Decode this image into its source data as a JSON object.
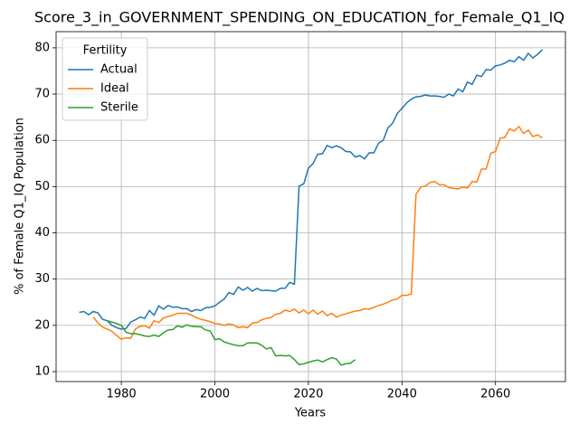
{
  "chart_data": {
    "type": "line",
    "title": "Score_3_in_GOVERNMENT_SPENDING_ON_EDUCATION_for_Female_Q1_IQ",
    "xlabel": "Years",
    "ylabel": "% of Female Q1_IQ Population",
    "legend_title": "Fertility",
    "legend": "upper left",
    "grid": true,
    "xlim": [
      1966.05,
      2074.95
    ],
    "ylim": [
      7.85,
      83.5
    ],
    "xticks": [
      1980,
      2000,
      2020,
      2040,
      2060
    ],
    "yticks": [
      10,
      20,
      30,
      40,
      50,
      60,
      70,
      80
    ],
    "x": [
      1971,
      1972,
      1973,
      1974,
      1975,
      1976,
      1977,
      1978,
      1979,
      1980,
      1981,
      1982,
      1983,
      1984,
      1985,
      1986,
      1987,
      1988,
      1989,
      1990,
      1991,
      1992,
      1993,
      1994,
      1995,
      1996,
      1997,
      1998,
      1999,
      2000,
      2001,
      2002,
      2003,
      2004,
      2005,
      2006,
      2007,
      2008,
      2009,
      2010,
      2011,
      2012,
      2013,
      2014,
      2015,
      2016,
      2017,
      2018,
      2019,
      2020,
      2021,
      2022,
      2023,
      2024,
      2025,
      2026,
      2027,
      2028,
      2029,
      2030,
      2031,
      2032,
      2033,
      2034,
      2035,
      2036,
      2037,
      2038,
      2039,
      2040,
      2041,
      2042,
      2043,
      2044,
      2045,
      2046,
      2047,
      2048,
      2049,
      2050,
      2051,
      2052,
      2053,
      2054,
      2055,
      2056,
      2057,
      2058,
      2059,
      2060,
      2061,
      2062,
      2063,
      2064,
      2065,
      2066,
      2067,
      2068,
      2069,
      2070
    ],
    "series": [
      {
        "name": "Actual",
        "color": "#1f77b4",
        "values": [
          22.8,
          23.0,
          22.3,
          23.0,
          22.7,
          21.3,
          21.0,
          20.0,
          19.5,
          19.2,
          19.3,
          20.7,
          21.2,
          21.8,
          21.5,
          23.2,
          22.2,
          24.2,
          23.5,
          24.3,
          23.9,
          24.0,
          23.6,
          23.6,
          23.0,
          23.4,
          23.2,
          23.8,
          23.9,
          24.2,
          25.0,
          25.7,
          27.1,
          26.7,
          28.3,
          27.6,
          28.2,
          27.4,
          28.0,
          27.5,
          27.6,
          27.5,
          27.4,
          28.0,
          28.0,
          29.3,
          28.9,
          50.1,
          50.6,
          54.0,
          55.0,
          57.0,
          57.1,
          58.9,
          58.4,
          58.8,
          58.4,
          57.6,
          57.5,
          56.4,
          56.7,
          56.0,
          57.3,
          57.3,
          59.4,
          60.0,
          62.7,
          63.7,
          65.8,
          66.9,
          68.1,
          68.9,
          69.4,
          69.5,
          69.8,
          69.6,
          69.6,
          69.5,
          69.3,
          70.0,
          69.6,
          71.1,
          70.5,
          72.6,
          72.1,
          74.1,
          73.8,
          75.3,
          75.2,
          76.1,
          76.3,
          76.7,
          77.3,
          77.0,
          78.1,
          77.3,
          78.8,
          77.8,
          78.6,
          79.6
        ]
      },
      {
        "name": "Ideal",
        "color": "#ff7f0e",
        "values": [
          null,
          null,
          null,
          21.8,
          20.5,
          19.6,
          19.2,
          18.7,
          17.8,
          17.0,
          17.3,
          17.2,
          19.2,
          19.8,
          19.9,
          19.4,
          21.0,
          20.6,
          21.6,
          21.9,
          22.2,
          22.6,
          22.6,
          22.6,
          22.2,
          21.7,
          21.3,
          21.1,
          20.8,
          20.4,
          20.3,
          20.0,
          20.3,
          20.1,
          19.5,
          19.7,
          19.5,
          20.5,
          20.6,
          21.2,
          21.5,
          21.7,
          22.4,
          22.6,
          23.3,
          23.0,
          23.5,
          22.7,
          23.3,
          22.5,
          23.3,
          22.4,
          23.1,
          22.1,
          22.6,
          21.8,
          22.2,
          22.5,
          22.8,
          23.1,
          23.2,
          23.6,
          23.5,
          23.9,
          24.3,
          24.6,
          25.0,
          25.5,
          25.7,
          26.5,
          26.5,
          26.8,
          48.3,
          49.9,
          50.1,
          50.9,
          51.1,
          50.4,
          50.4,
          49.8,
          49.6,
          49.5,
          49.9,
          49.7,
          51.1,
          51.0,
          53.8,
          53.8,
          57.2,
          57.6,
          60.5,
          60.6,
          62.5,
          62.0,
          63.0,
          61.5,
          62.2,
          60.8,
          61.2,
          60.5
        ]
      },
      {
        "name": "Sterile",
        "color": "#2ca02c",
        "values": [
          null,
          null,
          null,
          null,
          null,
          null,
          21.0,
          20.7,
          20.4,
          20.0,
          18.5,
          18.2,
          18.2,
          18.0,
          17.7,
          17.6,
          17.9,
          17.6,
          18.4,
          19.0,
          19.1,
          19.9,
          19.6,
          20.1,
          19.8,
          19.7,
          19.7,
          19.0,
          18.8,
          16.9,
          17.1,
          16.4,
          16.1,
          15.8,
          15.6,
          15.6,
          16.2,
          16.2,
          16.2,
          15.7,
          14.9,
          15.2,
          13.4,
          13.5,
          13.4,
          13.5,
          12.6,
          11.5,
          11.7,
          12.0,
          12.3,
          12.5,
          12.1,
          12.6,
          13.0,
          12.7,
          11.4,
          11.7,
          11.8,
          12.6,
          null,
          null,
          null,
          null,
          null,
          null,
          null,
          null,
          null,
          null,
          null,
          null,
          null,
          null,
          null,
          null,
          null,
          null,
          null,
          null,
          null,
          null,
          null,
          null,
          null,
          null,
          null,
          null,
          null,
          null,
          null,
          null,
          null,
          null,
          null,
          null,
          null,
          null,
          null,
          null
        ]
      }
    ]
  }
}
